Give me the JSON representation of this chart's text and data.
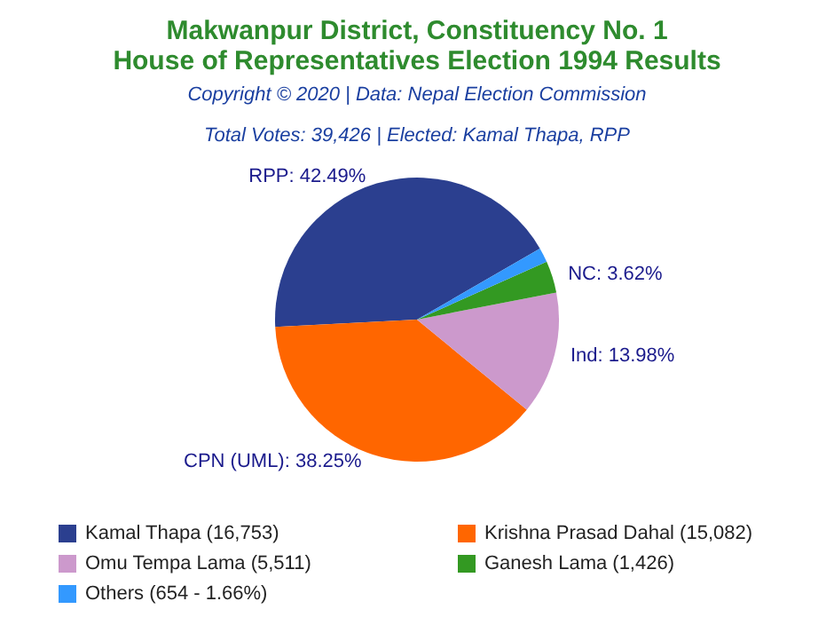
{
  "chart_data": {
    "type": "pie",
    "title": "Makwanpur District, Constituency No. 1\nHouse of Representatives Election 1994 Results",
    "subtitle": "Copyright © 2020 | Data: Nepal Election Commission",
    "annotations": [
      "Total Votes: 39,426 | Elected: Kamal Thapa, RPP"
    ],
    "categories": [
      "Kamal Thapa (16,753)",
      "Krishna Prasad Dahal (15,082)",
      "Omu Tempa Lama (5,511)",
      "Ganesh Lama (1,426)",
      "Others (654 - 1.66%)"
    ],
    "values": [
      42.49,
      38.25,
      13.98,
      3.62,
      1.66
    ],
    "colors": [
      "#2b3f8f",
      "#ff6600",
      "#cc99cc",
      "#339922",
      "#3399ff"
    ],
    "value_labels": [
      "RPP: 42.49%",
      "CPN (UML): 38.25%",
      "Ind: 13.98%",
      "NC: 3.62%",
      null
    ],
    "legend": "bottom"
  }
}
